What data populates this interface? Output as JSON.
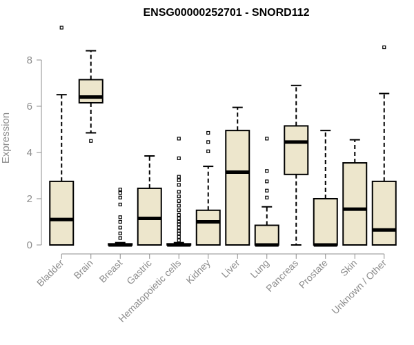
{
  "chart_data": {
    "type": "boxplot",
    "title": "ENSG00000252701 - SNORD112",
    "xlabel": "",
    "ylabel": "Expression",
    "ylim": [
      0,
      9.7
    ],
    "yticks": [
      0,
      2,
      4,
      6,
      8
    ],
    "grid": false,
    "colors": {
      "box_fill": "#ede6cc",
      "stroke": "#000000",
      "axis_text": "#8c8c8c"
    },
    "categories": [
      "Bladder",
      "Brain",
      "Breast",
      "Gastric",
      "Hematopoietic cells",
      "Kidney",
      "Liver",
      "Lung",
      "Pancreas",
      "Prostate",
      "Skin",
      "Unknown / Other"
    ],
    "boxes": [
      {
        "name": "Bladder",
        "whisker_low": 0,
        "q1": 0,
        "median": 1.1,
        "q3": 2.75,
        "whisker_high": 6.5,
        "outliers": [
          9.4
        ]
      },
      {
        "name": "Brain",
        "whisker_low": 4.85,
        "q1": 6.15,
        "median": 6.4,
        "q3": 7.15,
        "whisker_high": 8.4,
        "outliers": [
          4.5
        ]
      },
      {
        "name": "Breast",
        "whisker_low": 0,
        "q1": 0,
        "median": 0,
        "q3": 0.05,
        "whisker_high": 0.1,
        "outliers": [
          0.3,
          0.5,
          0.75,
          1.0,
          1.2,
          1.75,
          2.05,
          2.25,
          2.4
        ]
      },
      {
        "name": "Gastric",
        "whisker_low": 0,
        "q1": 0,
        "median": 1.15,
        "q3": 2.45,
        "whisker_high": 3.85,
        "outliers": []
      },
      {
        "name": "Hematopoietic cells",
        "whisker_low": 0,
        "q1": 0,
        "median": 0,
        "q3": 0.05,
        "whisker_high": 0.1,
        "outliers": [
          0.2,
          0.35,
          0.5,
          0.6,
          0.75,
          0.9,
          1.0,
          1.15,
          1.3,
          1.5,
          1.7,
          1.9,
          2.1,
          2.3,
          2.6,
          2.8,
          2.95,
          3.75,
          4.6
        ]
      },
      {
        "name": "Kidney",
        "whisker_low": 0,
        "q1": 0,
        "median": 1.0,
        "q3": 1.5,
        "whisker_high": 3.4,
        "outliers": [
          4.05,
          4.45,
          4.85
        ]
      },
      {
        "name": "Liver",
        "whisker_low": 0,
        "q1": 0,
        "median": 3.15,
        "q3": 4.95,
        "whisker_high": 5.95,
        "outliers": []
      },
      {
        "name": "Lung",
        "whisker_low": 0,
        "q1": 0,
        "median": 0,
        "q3": 0.85,
        "whisker_high": 1.65,
        "outliers": [
          2.05,
          2.35,
          2.75,
          3.2,
          4.6
        ]
      },
      {
        "name": "Pancreas",
        "whisker_low": 0,
        "q1": 3.05,
        "median": 4.45,
        "q3": 5.15,
        "whisker_high": 6.9,
        "outliers": []
      },
      {
        "name": "Prostate",
        "whisker_low": 0,
        "q1": 0,
        "median": 0,
        "q3": 2.0,
        "whisker_high": 4.95,
        "outliers": []
      },
      {
        "name": "Skin",
        "whisker_low": 0,
        "q1": 0,
        "median": 1.55,
        "q3": 3.55,
        "whisker_high": 4.55,
        "outliers": []
      },
      {
        "name": "Unknown / Other",
        "whisker_low": 0,
        "q1": 0,
        "median": 0.65,
        "q3": 2.75,
        "whisker_high": 6.55,
        "outliers": [
          8.55
        ]
      }
    ]
  }
}
